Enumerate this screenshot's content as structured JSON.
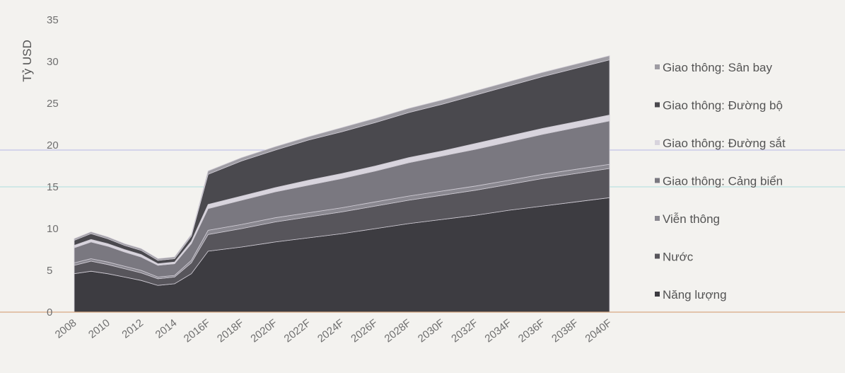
{
  "chart_data": {
    "type": "area",
    "stacked": true,
    "xlabel": "",
    "ylabel": "Tỷ USD",
    "ylim": [
      0,
      35
    ],
    "yticks": [
      "0",
      "5",
      "10",
      "15",
      "20",
      "25",
      "30",
      "35"
    ],
    "categories": [
      "2008",
      "2009",
      "2010",
      "2011",
      "2012",
      "2013",
      "2014",
      "2015",
      "2016F",
      "2018F",
      "2020F",
      "2022F",
      "2024F",
      "2026F",
      "2028F",
      "2030F",
      "2032F",
      "2034F",
      "2036F",
      "2038F",
      "2040F"
    ],
    "tick_labels": [
      "2008",
      "2010",
      "2012",
      "2014",
      "2016F",
      "2018F",
      "2020F",
      "2022F",
      "2024F",
      "2026F",
      "2028F",
      "2030F",
      "2032F",
      "2034F",
      "2036F",
      "2038F",
      "2040F"
    ],
    "legend_position": "right",
    "grid": false,
    "series": [
      {
        "name": "Năng lượng",
        "color": "#3d3c41",
        "values": [
          4.6,
          4.9,
          4.6,
          4.2,
          3.8,
          3.2,
          3.4,
          4.6,
          7.3,
          7.8,
          8.4,
          8.9,
          9.4,
          10.0,
          10.6,
          11.1,
          11.6,
          12.2,
          12.7,
          13.2,
          13.7
        ]
      },
      {
        "name": "Nước",
        "color": "#57555b",
        "values": [
          1.0,
          1.2,
          1.1,
          1.0,
          0.9,
          0.8,
          0.8,
          1.3,
          2.0,
          2.2,
          2.4,
          2.5,
          2.6,
          2.7,
          2.8,
          2.9,
          3.0,
          3.1,
          3.3,
          3.4,
          3.5
        ]
      },
      {
        "name": "Viễn thông",
        "color": "#8a8890",
        "values": [
          0.3,
          0.3,
          0.3,
          0.3,
          0.3,
          0.2,
          0.2,
          0.3,
          0.5,
          0.5,
          0.5,
          0.5,
          0.5,
          0.5,
          0.5,
          0.5,
          0.5,
          0.5,
          0.5,
          0.5,
          0.5
        ]
      },
      {
        "name": "Giao thông: Cảng biển",
        "color": "#7a7880",
        "values": [
          1.8,
          2.0,
          1.9,
          1.7,
          1.6,
          1.4,
          1.4,
          2.0,
          2.6,
          2.9,
          3.1,
          3.3,
          3.5,
          3.7,
          4.0,
          4.2,
          4.4,
          4.6,
          4.8,
          5.0,
          5.2
        ]
      },
      {
        "name": "Giao thông: Đường sắt",
        "color": "#d8d4dd",
        "values": [
          0.3,
          0.3,
          0.3,
          0.3,
          0.3,
          0.2,
          0.2,
          0.3,
          0.5,
          0.5,
          0.5,
          0.6,
          0.6,
          0.6,
          0.6,
          0.6,
          0.7,
          0.7,
          0.7,
          0.7,
          0.7
        ]
      },
      {
        "name": "Giao thông: Đường bộ",
        "color": "#4a494e",
        "values": [
          0.6,
          0.7,
          0.6,
          0.5,
          0.5,
          0.4,
          0.4,
          0.6,
          3.6,
          4.2,
          4.5,
          4.8,
          5.0,
          5.2,
          5.4,
          5.6,
          5.8,
          6.0,
          6.2,
          6.4,
          6.6
        ]
      },
      {
        "name": "Giao thông: Sân bay",
        "color": "#9e9ca3",
        "values": [
          0.2,
          0.2,
          0.2,
          0.2,
          0.2,
          0.2,
          0.2,
          0.2,
          0.4,
          0.4,
          0.4,
          0.4,
          0.5,
          0.5,
          0.5,
          0.5,
          0.5,
          0.5,
          0.5,
          0.5,
          0.5
        ]
      }
    ],
    "legend_order": [
      "Giao thông: Sân bay",
      "Giao thông: Đường bộ",
      "Giao thông: Đường sắt",
      "Giao thông: Cảng biển",
      "Viễn thông",
      "Nước",
      "Năng lượng"
    ]
  }
}
